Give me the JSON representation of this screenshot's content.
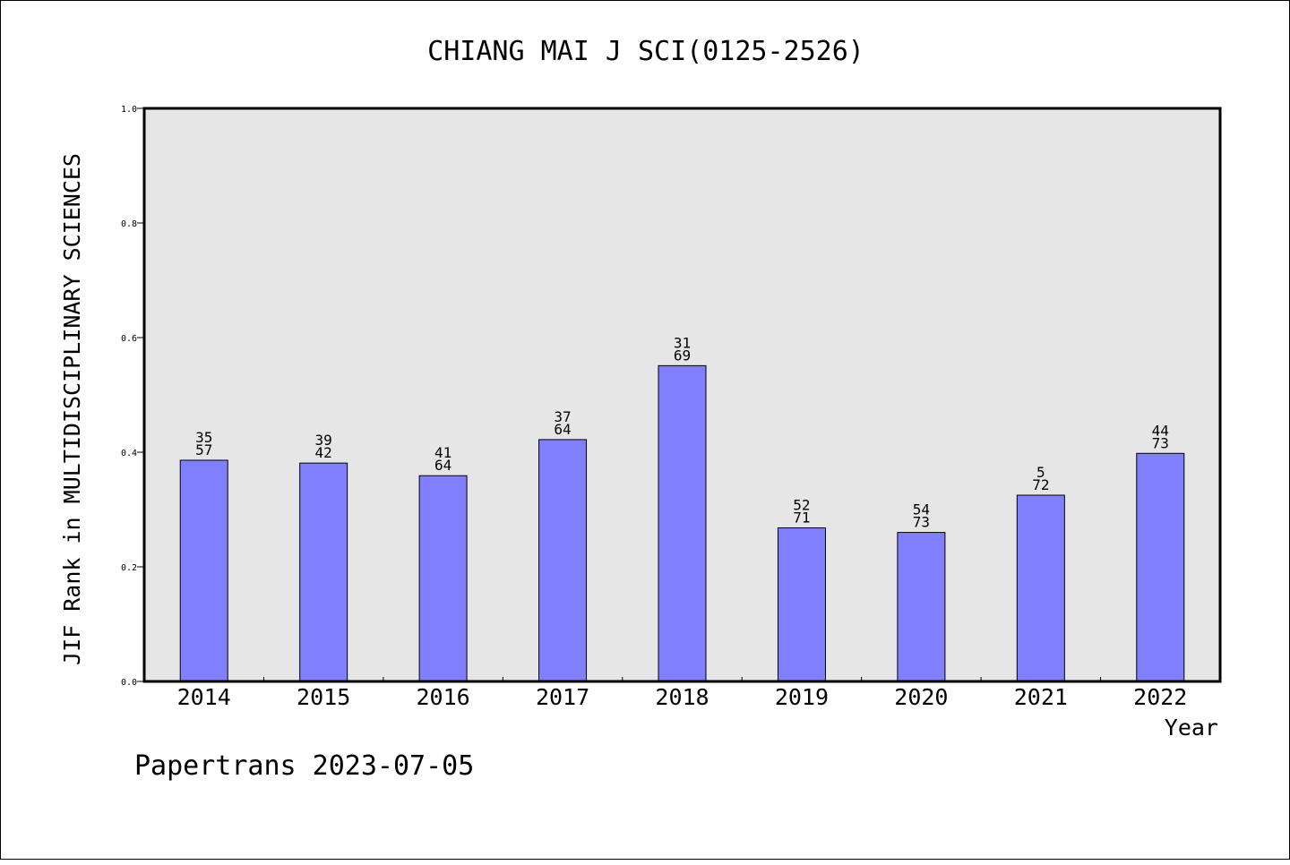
{
  "chart_data": {
    "type": "bar",
    "title": "CHIANG MAI J SCI(0125-2526)",
    "xlabel": "Year",
    "ylabel": "JIF Rank in MULTIDISCIPLINARY SCIENCES",
    "ylim": [
      0.0,
      1.0
    ],
    "yticks": [
      "0.0",
      "0.2",
      "0.4",
      "0.6",
      "0.8",
      "1.0"
    ],
    "categories": [
      "2014",
      "2015",
      "2016",
      "2017",
      "2018",
      "2019",
      "2020",
      "2021",
      "2022"
    ],
    "values": [
      0.386,
      0.381,
      0.359,
      0.422,
      0.551,
      0.268,
      0.26,
      0.325,
      0.398
    ],
    "bar_labels": [
      {
        "top": "35",
        "bottom": "57"
      },
      {
        "top": "39",
        "bottom": "42"
      },
      {
        "top": "41",
        "bottom": "64"
      },
      {
        "top": "37",
        "bottom": "64"
      },
      {
        "top": "31",
        "bottom": "69"
      },
      {
        "top": "52",
        "bottom": "71"
      },
      {
        "top": "54",
        "bottom": "73"
      },
      {
        "top": "5",
        "bottom": "72"
      },
      {
        "top": "44",
        "bottom": "73"
      }
    ],
    "colors": {
      "bar": "#8080ff",
      "plot_background": "#e6e6e6",
      "axis": "#000000"
    },
    "grid": false,
    "legend": false
  },
  "footer": {
    "text": "Papertrans 2023-07-05"
  }
}
